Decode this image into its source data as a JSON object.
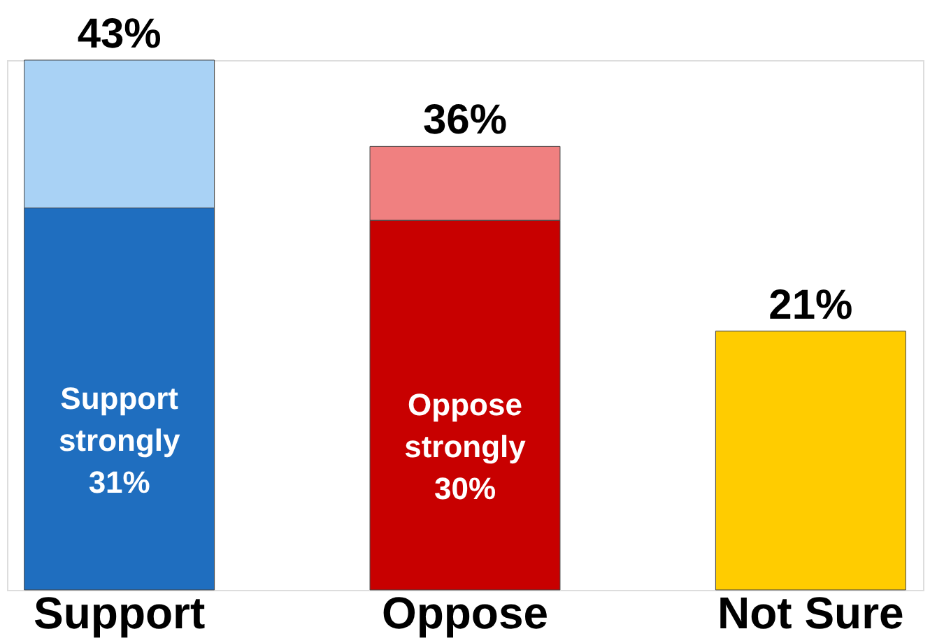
{
  "chart_data": {
    "type": "bar",
    "stacked": true,
    "categories": [
      "Support",
      "Oppose",
      "Not Sure"
    ],
    "series": [
      {
        "colors": [
          "#1f6ebf",
          "#c80000",
          "#ffcc00"
        ],
        "values": [
          31,
          30,
          21
        ],
        "value_labels": [
          "Support strongly 31%",
          "Oppose strongly 30%",
          null
        ]
      },
      {
        "colors": [
          "#a9d2f5",
          "#f08080",
          "#ffcc00"
        ],
        "values": [
          12,
          6,
          null
        ]
      }
    ],
    "totals": [
      "43%",
      "36%",
      "21%"
    ],
    "grid": false
  }
}
